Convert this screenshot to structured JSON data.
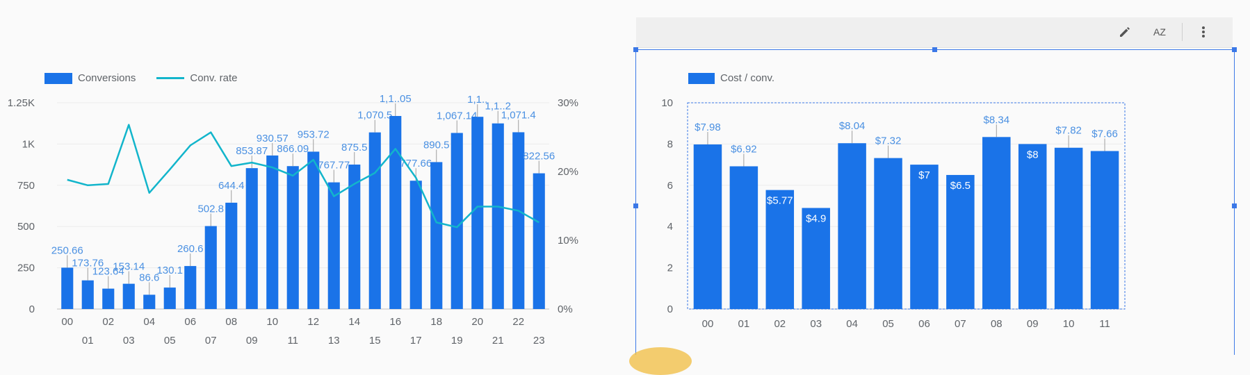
{
  "left_chart": {
    "legend": [
      {
        "label": "Conversions",
        "kind": "bar",
        "color": "#1a73e8"
      },
      {
        "label": "Conv. rate",
        "kind": "line",
        "color": "#12b5cb"
      }
    ]
  },
  "right_chart": {
    "legend": [
      {
        "label": "Cost / conv.",
        "kind": "bar",
        "color": "#1a73e8"
      }
    ]
  },
  "toolbar": {
    "edit_icon": "pencil-icon",
    "sort_icon": "sort-az-icon",
    "sort_label": "AZ",
    "more_icon": "more-vert-icon"
  },
  "chart_data": [
    {
      "type": "bar",
      "title": "",
      "categories": [
        "00",
        "01",
        "02",
        "03",
        "04",
        "05",
        "06",
        "07",
        "08",
        "09",
        "10",
        "11",
        "12",
        "13",
        "14",
        "15",
        "16",
        "17",
        "18",
        "19",
        "20",
        "21",
        "22",
        "23"
      ],
      "series": [
        {
          "name": "Conversions",
          "axis": "left",
          "values": [
            250.66,
            173.76,
            123.64,
            153.14,
            86.6,
            130.1,
            260.6,
            502.8,
            644.4,
            853.87,
            930.57,
            866.09,
            953.72,
            767.77,
            875.5,
            1070.5,
            1170,
            777.66,
            890.5,
            1067.14,
            1165,
            1125,
            1071.4,
            822.56
          ],
          "labels": [
            "250.66",
            "173.76",
            "123.64",
            "153.14",
            "86.6",
            "130.1",
            "260.6",
            "502.8",
            "644.4",
            "853.87",
            "930.57",
            "866.09",
            "953.72",
            "767.77",
            "875.5",
            "1,070.5",
            "1,1..05",
            "777.66",
            "890.5",
            "1,067.14",
            "1,1..",
            "1,1..2",
            "1,071.4",
            "822.56"
          ],
          "color": "#1a73e8"
        },
        {
          "name": "Conv. rate",
          "axis": "right",
          "type": "line",
          "values": [
            18.8,
            18.0,
            18.2,
            26.8,
            16.9,
            20.3,
            23.8,
            25.7,
            20.8,
            21.3,
            20.6,
            19.4,
            21.7,
            16.4,
            18.2,
            19.8,
            23.3,
            19.1,
            12.6,
            11.9,
            14.9,
            14.9,
            14.3,
            12.6
          ],
          "color": "#12b5cb"
        }
      ],
      "y_left": {
        "ticks": [
          0,
          250,
          500,
          750,
          1000,
          1250
        ],
        "tick_labels": [
          "0",
          "250",
          "500",
          "750",
          "1K",
          "1.25K"
        ],
        "ylim": [
          0,
          1250
        ]
      },
      "y_right": {
        "ticks": [
          0,
          10,
          20,
          30
        ],
        "tick_labels": [
          "0%",
          "10%",
          "20%",
          "30%"
        ],
        "ylim": [
          0,
          30
        ]
      },
      "grid": true,
      "legend_position": "top-left"
    },
    {
      "type": "bar",
      "title": "",
      "categories": [
        "00",
        "01",
        "02",
        "03",
        "04",
        "05",
        "06",
        "07",
        "08",
        "09",
        "10",
        "11"
      ],
      "series": [
        {
          "name": "Cost / conv.",
          "values": [
            7.98,
            6.92,
            5.77,
            4.9,
            8.04,
            7.32,
            7.0,
            6.5,
            8.34,
            8.0,
            7.82,
            7.66
          ],
          "labels": [
            "$7.98",
            "$6.92",
            "$5.77",
            "$4.9",
            "$8.04",
            "$7.32",
            "$7",
            "$6.5",
            "$8.34",
            "$8",
            "$7.82",
            "$7.66"
          ],
          "color": "#1a73e8"
        }
      ],
      "y": {
        "ticks": [
          0,
          2,
          4,
          6,
          8,
          10
        ],
        "tick_labels": [
          "0",
          "2",
          "4",
          "6",
          "8",
          "10"
        ],
        "ylim": [
          0,
          10
        ]
      },
      "grid": true,
      "legend_position": "top-left"
    }
  ]
}
